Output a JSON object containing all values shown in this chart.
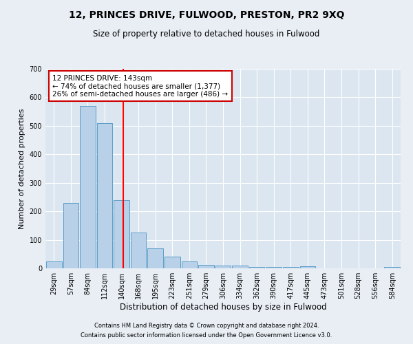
{
  "title": "12, PRINCES DRIVE, FULWOOD, PRESTON, PR2 9XQ",
  "subtitle": "Size of property relative to detached houses in Fulwood",
  "xlabel": "Distribution of detached houses by size in Fulwood",
  "ylabel": "Number of detached properties",
  "categories": [
    "29sqm",
    "57sqm",
    "84sqm",
    "112sqm",
    "140sqm",
    "168sqm",
    "195sqm",
    "223sqm",
    "251sqm",
    "279sqm",
    "306sqm",
    "334sqm",
    "362sqm",
    "390sqm",
    "417sqm",
    "445sqm",
    "473sqm",
    "501sqm",
    "528sqm",
    "556sqm",
    "584sqm"
  ],
  "values": [
    25,
    230,
    570,
    510,
    240,
    125,
    70,
    40,
    25,
    12,
    10,
    10,
    5,
    5,
    5,
    7,
    0,
    0,
    0,
    0,
    5
  ],
  "bar_color": "#b8d0e8",
  "bar_edge_color": "#5a9ec9",
  "red_line_index": 4.1,
  "annotation_text_line1": "12 PRINCES DRIVE: 143sqm",
  "annotation_text_line2": "← 74% of detached houses are smaller (1,377)",
  "annotation_text_line3": "26% of semi-detached houses are larger (486) →",
  "annotation_box_color": "#ffffff",
  "annotation_box_edge_color": "#cc0000",
  "footer1": "Contains HM Land Registry data © Crown copyright and database right 2024.",
  "footer2": "Contains public sector information licensed under the Open Government Licence v3.0.",
  "ylim": [
    0,
    700
  ],
  "yticks": [
    0,
    100,
    200,
    300,
    400,
    500,
    600,
    700
  ],
  "bg_color": "#e8eef4",
  "plot_bg_color": "#dce6f0",
  "title_fontsize": 10,
  "subtitle_fontsize": 8.5,
  "ylabel_fontsize": 8,
  "xlabel_fontsize": 8.5,
  "tick_fontsize": 7,
  "ann_fontsize": 7.5,
  "footer_fontsize": 6
}
